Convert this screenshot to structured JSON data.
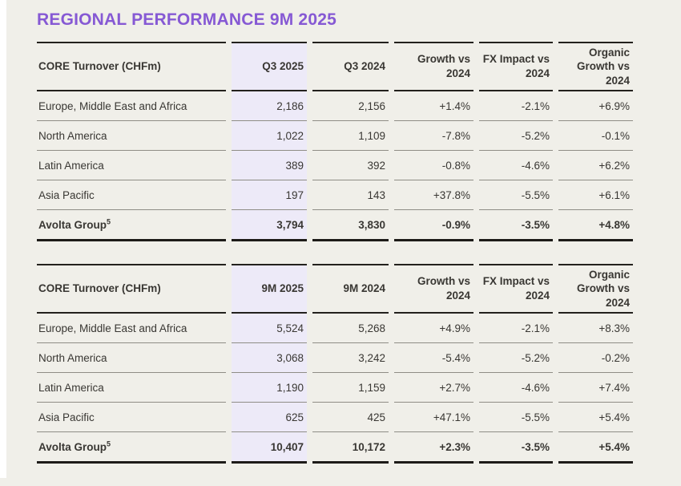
{
  "page": {
    "title": "REGIONAL PERFORMANCE 9M 2025"
  },
  "colors": {
    "background": "#f0efe9",
    "title_purple": "#8659d4",
    "highlight_column": "#edeaf8",
    "text": "#393733",
    "thin_row_line": "#8f8d86",
    "heavy_line": "#23211d"
  },
  "tables": [
    {
      "period": "Q3",
      "columns": [
        "CORE Turnover (CHFm)",
        "Q3 2025",
        "Q3 2024",
        "Growth vs 2024",
        "FX Impact vs 2024",
        "Organic Growth vs 2024"
      ],
      "rows": [
        {
          "label": "Europe, Middle East and Africa",
          "values": [
            "2,186",
            "2,156",
            "+1.4%",
            "-2.1%",
            "+6.9%"
          ],
          "bold": false
        },
        {
          "label": "North America",
          "values": [
            "1,022",
            "1,109",
            "-7.8%",
            "-5.2%",
            "-0.1%"
          ],
          "bold": false
        },
        {
          "label": "Latin America",
          "values": [
            "389",
            "392",
            "-0.8%",
            "-4.6%",
            "+6.2%"
          ],
          "bold": false
        },
        {
          "label": "Asia Pacific",
          "values": [
            "197",
            "143",
            "+37.8%",
            "-5.5%",
            "+6.1%"
          ],
          "bold": false
        },
        {
          "label": "Avolta Group",
          "footnote": "5",
          "values": [
            "3,794",
            "3,830",
            "-0.9%",
            "-3.5%",
            "+4.8%"
          ],
          "bold": true
        }
      ]
    },
    {
      "period": "9M",
      "columns": [
        "CORE Turnover (CHFm)",
        "9M 2025",
        "9M 2024",
        "Growth vs 2024",
        "FX Impact vs 2024",
        "Organic Growth vs 2024"
      ],
      "rows": [
        {
          "label": "Europe, Middle East and Africa",
          "values": [
            "5,524",
            "5,268",
            "+4.9%",
            "-2.1%",
            "+8.3%"
          ],
          "bold": false
        },
        {
          "label": "North America",
          "values": [
            "3,068",
            "3,242",
            "-5.4%",
            "-5.2%",
            "-0.2%"
          ],
          "bold": false
        },
        {
          "label": "Latin America",
          "values": [
            "1,190",
            "1,159",
            "+2.7%",
            "-4.6%",
            "+7.4%"
          ],
          "bold": false
        },
        {
          "label": "Asia Pacific",
          "values": [
            "625",
            "425",
            "+47.1%",
            "-5.5%",
            "+5.4%"
          ],
          "bold": false
        },
        {
          "label": "Avolta Group",
          "footnote": "5",
          "values": [
            "10,407",
            "10,172",
            "+2.3%",
            "-3.5%",
            "+5.4%"
          ],
          "bold": true
        }
      ]
    }
  ]
}
